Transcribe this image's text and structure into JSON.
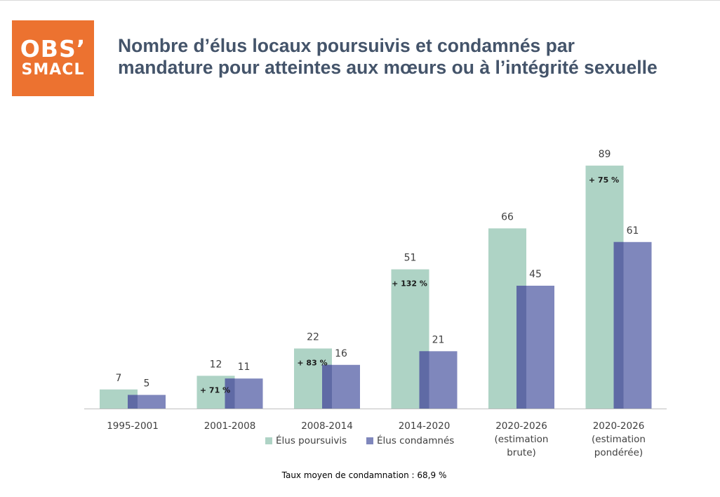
{
  "logo": {
    "line1": "OBS’",
    "line2": "SMACL"
  },
  "title": {
    "line1": "Nombre d’élus locaux poursuivis et condamnés par",
    "line2": "mandature pour atteintes aux mœurs ou à l’intégrité sexuelle"
  },
  "colors": {
    "poursuivis": "#aed3c5",
    "condamnes": "#7f87bc",
    "overlap": "#5f6aa5",
    "title": "#44546a",
    "logo": "#ec7230"
  },
  "chart_data": {
    "type": "bar",
    "categories": [
      [
        "1995-2001"
      ],
      [
        "2001-2008"
      ],
      [
        "2008-2014"
      ],
      [
        "2014-2020"
      ],
      [
        "2020-2026",
        "(estimation",
        "brute)"
      ],
      [
        "2020-2026",
        "(estimation",
        "pondérée)"
      ]
    ],
    "series": [
      {
        "name": "Élus poursuivis",
        "values": [
          7,
          12,
          22,
          51,
          66,
          89
        ]
      },
      {
        "name": "Élus condamnés",
        "values": [
          5,
          11,
          16,
          21,
          45,
          61
        ]
      }
    ],
    "annotations": [
      "",
      "+ 71 %",
      "+ 83 %",
      "+ 132 %",
      "",
      "+ 75 %"
    ],
    "ylim": [
      0,
      90
    ],
    "grid": false,
    "legend": "bottom"
  },
  "footer": {
    "caption": "Taux moyen de condamnation : 68,9 %"
  }
}
